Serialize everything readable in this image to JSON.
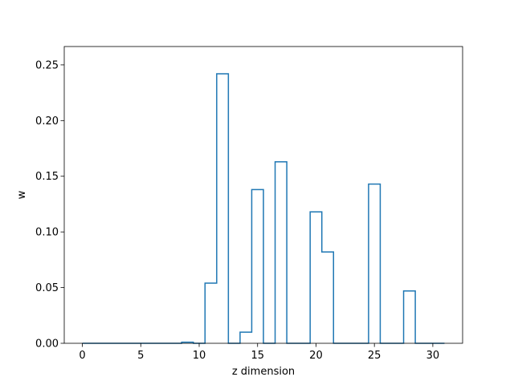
{
  "chart_data": {
    "type": "line",
    "drawstyle": "steps-mid",
    "title": "",
    "xlabel": "z dimension",
    "ylabel": "w",
    "xlim": [
      -1.55,
      32.55
    ],
    "ylim": [
      0,
      0.2665
    ],
    "x_ticks": [
      0,
      5,
      10,
      15,
      20,
      25,
      30
    ],
    "y_ticks": [
      0.0,
      0.05,
      0.1,
      0.15,
      0.2,
      0.25
    ],
    "y_tick_labels": [
      "0.00",
      "0.05",
      "0.10",
      "0.15",
      "0.20",
      "0.25"
    ],
    "grid": false,
    "line_color": "#1f77b4",
    "x": [
      0,
      1,
      2,
      3,
      4,
      5,
      6,
      7,
      8,
      9,
      10,
      11,
      12,
      13,
      14,
      15,
      16,
      17,
      18,
      19,
      20,
      21,
      22,
      23,
      24,
      25,
      26,
      27,
      28,
      29,
      30,
      31
    ],
    "values": [
      0,
      0,
      0,
      0,
      0,
      0,
      0,
      0,
      0,
      0.001,
      0,
      0.054,
      0.242,
      0,
      0.01,
      0.138,
      0,
      0.163,
      0,
      0,
      0.118,
      0.082,
      0,
      0,
      0,
      0.143,
      0,
      0,
      0.047,
      0,
      0,
      0
    ]
  }
}
